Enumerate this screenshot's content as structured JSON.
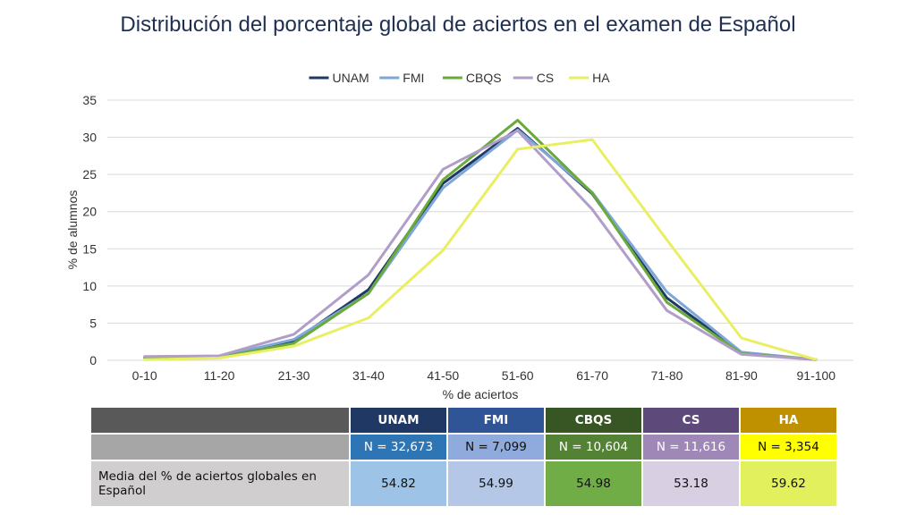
{
  "title": "Distribución del porcentaje global de aciertos en el examen de Español",
  "chart_data": {
    "type": "line",
    "xlabel": "% de aciertos",
    "ylabel": "% de alumnos",
    "ylim": [
      0,
      35
    ],
    "yticks": [
      "0",
      "5",
      "10",
      "15",
      "20",
      "25",
      "30",
      "35"
    ],
    "grid": true,
    "legend_position": "top",
    "categories": [
      "0-10",
      "11-20",
      "21-30",
      "31-40",
      "41-50",
      "51-60",
      "61-70",
      "71-80",
      "81-90",
      "91-100"
    ],
    "series": [
      {
        "name": "UNAM",
        "color": "#1f3864",
        "values": [
          0.4,
          0.5,
          2.6,
          9.5,
          23.8,
          31.2,
          22.4,
          8.4,
          1.0,
          0.1
        ]
      },
      {
        "name": "FMI",
        "color": "#7ea6d8",
        "values": [
          0.4,
          0.5,
          2.8,
          9.0,
          23.2,
          31.0,
          22.6,
          9.2,
          1.1,
          0.1
        ]
      },
      {
        "name": "CBQS",
        "color": "#6aaa3a",
        "values": [
          0.3,
          0.4,
          2.3,
          9.0,
          24.3,
          32.3,
          22.5,
          7.8,
          0.9,
          0.1
        ]
      },
      {
        "name": "CS",
        "color": "#b09ec9",
        "values": [
          0.5,
          0.6,
          3.5,
          11.5,
          25.7,
          30.9,
          20.3,
          6.7,
          0.8,
          0.1
        ]
      },
      {
        "name": "HA",
        "color": "#e9ef63",
        "values": [
          0.1,
          0.3,
          1.9,
          5.7,
          14.8,
          28.4,
          29.7,
          16.2,
          3.0,
          0.1
        ]
      }
    ]
  },
  "table": {
    "columns": [
      {
        "header": "UNAM",
        "n": "N = 32,673",
        "mean": "54.82",
        "hdr_color": "#203864",
        "n_color": "#2e75b6",
        "mean_color": "#9dc3e6",
        "n_text": "#ffffff"
      },
      {
        "header": "FMI",
        "n": "N = 7,099",
        "mean": "54.99",
        "hdr_color": "#2f5597",
        "n_color": "#8faadc",
        "mean_color": "#b4c7e7",
        "n_text": "#111111"
      },
      {
        "header": "CBQS",
        "n": "N = 10,604",
        "mean": "54.98",
        "hdr_color": "#375623",
        "n_color": "#548235",
        "mean_color": "#70ad47",
        "n_text": "#ffffff"
      },
      {
        "header": "CS",
        "n": "N = 11,616",
        "mean": "53.18",
        "hdr_color": "#5e4a7a",
        "n_color": "#9f88b8",
        "mean_color": "#d9cfe3",
        "n_text": "#ffffff"
      },
      {
        "header": "HA",
        "n": "N = 3,354",
        "mean": "59.62",
        "hdr_color": "#bf9000",
        "n_color": "#ffff00",
        "mean_color": "#e2f05d",
        "n_text": "#111111"
      }
    ],
    "mean_row_label": "Media del % de aciertos globales en Español",
    "label_header_color": "#595959",
    "label_n_color": "#a6a6a6",
    "label_mean_color": "#d0cece"
  }
}
